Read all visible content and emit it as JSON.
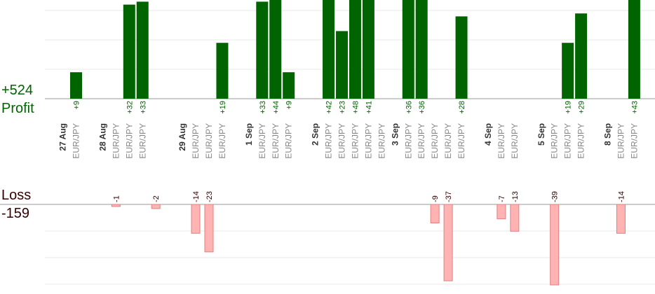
{
  "summary": {
    "profit_total": "+524",
    "profit_label": "Profit",
    "loss_label": "Loss",
    "loss_total": "-159"
  },
  "colors": {
    "profit_bar": "#006400",
    "profit_text": "#006400",
    "loss_bar_fill": "#ffb3b3",
    "loss_bar_stroke": "#e08080",
    "loss_text": "#330000",
    "grid": "#e8e8e8",
    "axis": "#999999",
    "pair_text": "#888888",
    "date_text": "#333333"
  },
  "chart_data": {
    "type": "bar",
    "pair": "EUR/JPY",
    "dates": [
      {
        "label": "27 Aug",
        "slots": [
          0
        ]
      },
      {
        "label": "28 Aug",
        "slots": [
          3,
          4,
          5
        ]
      },
      {
        "label": "29 Aug",
        "slots": [
          9,
          10,
          11
        ]
      },
      {
        "label": "1 Sep",
        "slots": [
          14,
          15,
          16
        ]
      },
      {
        "label": "2 Sep",
        "slots": [
          19,
          20,
          21,
          22,
          23
        ]
      },
      {
        "label": "3 Sep",
        "slots": [
          25,
          26,
          27,
          28,
          29
        ]
      },
      {
        "label": "4 Sep",
        "slots": [
          32,
          33
        ]
      },
      {
        "label": "5 Sep",
        "slots": [
          36,
          37,
          38
        ]
      },
      {
        "label": "8 Sep",
        "slots": [
          41,
          42
        ]
      }
    ],
    "profits": [
      {
        "slot": 0,
        "value": 9,
        "label": "+9"
      },
      {
        "slot": 4,
        "value": 32,
        "label": "+32"
      },
      {
        "slot": 5,
        "value": 33,
        "label": "+33"
      },
      {
        "slot": 11,
        "value": 19,
        "label": "+19"
      },
      {
        "slot": 14,
        "value": 33,
        "label": "+33"
      },
      {
        "slot": 15,
        "value": 44,
        "label": "+44"
      },
      {
        "slot": 16,
        "value": 9,
        "label": "+9"
      },
      {
        "slot": 19,
        "value": 42,
        "label": "+42"
      },
      {
        "slot": 20,
        "value": 23,
        "label": "+23"
      },
      {
        "slot": 21,
        "value": 48,
        "label": "+48"
      },
      {
        "slot": 22,
        "value": 41,
        "label": "+41"
      },
      {
        "slot": 25,
        "value": 36,
        "label": "+36"
      },
      {
        "slot": 26,
        "value": 36,
        "label": "+36"
      },
      {
        "slot": 29,
        "value": 28,
        "label": "+28"
      },
      {
        "slot": 37,
        "value": 19,
        "label": "+19"
      },
      {
        "slot": 38,
        "value": 29,
        "label": "+29"
      },
      {
        "slot": 42,
        "value": 43,
        "label": "+43"
      }
    ],
    "losses": [
      {
        "slot": 3,
        "value": -1,
        "label": "-1"
      },
      {
        "slot": 6,
        "value": -2,
        "label": "-2"
      },
      {
        "slot": 9,
        "value": -14,
        "label": "-14"
      },
      {
        "slot": 10,
        "value": -23,
        "label": "-23"
      },
      {
        "slot": 27,
        "value": -9,
        "label": "-9"
      },
      {
        "slot": 28,
        "value": -37,
        "label": "-37"
      },
      {
        "slot": 32,
        "value": -7,
        "label": "-7"
      },
      {
        "slot": 33,
        "value": -13,
        "label": "-13"
      },
      {
        "slot": 36,
        "value": -39,
        "label": "-39"
      },
      {
        "slot": 41,
        "value": -14,
        "label": "-14"
      }
    ],
    "profit_ylim": [
      0,
      33
    ],
    "loss_ylim": [
      -30,
      0
    ],
    "grid": true
  }
}
